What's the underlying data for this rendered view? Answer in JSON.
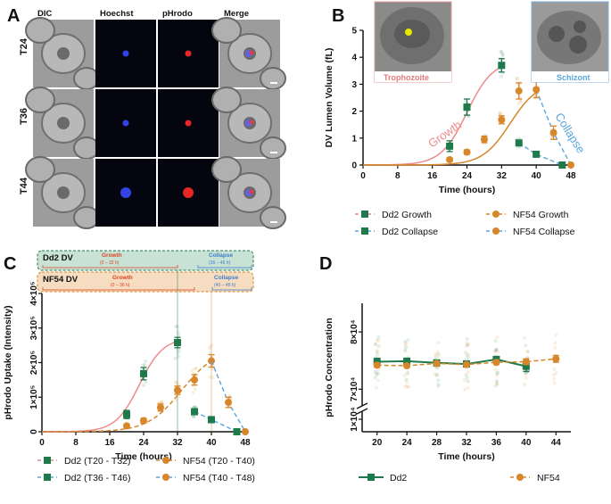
{
  "panel_labels": [
    "A",
    "B",
    "C",
    "D"
  ],
  "panelA": {
    "columns": [
      "DIC",
      "Hoechst",
      "pHrodo",
      "Merge"
    ],
    "rows": [
      "T24",
      "T36",
      "T44"
    ]
  },
  "insets": {
    "trophozoite": "Trophozoite",
    "schizont": "Schizont"
  },
  "annotations": {
    "growth": "Growth",
    "collapse": "Collapse"
  },
  "bars": {
    "dd2_title": "Dd2 DV",
    "nf54_title": "NF54 DV",
    "dd2_growth": "Growth",
    "dd2_growth_range": "(0 – 32 h)",
    "dd2_collapse": "Collapse",
    "dd2_collapse_range": "(36 – 46 h)",
    "nf54_growth": "Growth",
    "nf54_growth_range": "(0 – 36 h)",
    "nf54_collapse": "Collapse",
    "nf54_collapse_range": "(40 – 48 h)"
  },
  "colors": {
    "dd2": "#1e7a4a",
    "nf54": "#d8862a",
    "dd2_fit": "#f08a8a",
    "nf54_fit": "#d8862a",
    "collapse_line": "#5aa6dc"
  },
  "chart_data": [
    {
      "id": "B",
      "type": "line",
      "xlabel": "Time (hours)",
      "ylabel": "DV Lumen Volume (fL)",
      "xlim": [
        0,
        48
      ],
      "ylim": [
        0,
        5
      ],
      "xticks": [
        "0",
        "8",
        "16",
        "24",
        "32",
        "40",
        "48"
      ],
      "yticks": [
        "0",
        "1",
        "2",
        "3",
        "4",
        "5"
      ],
      "series": [
        {
          "name": "Dd2 Growth",
          "x": [
            20,
            24,
            32
          ],
          "y": [
            0.7,
            2.15,
            3.7
          ],
          "err": [
            0.2,
            0.3,
            0.25
          ]
        },
        {
          "name": "Dd2 Collapse",
          "x": [
            36,
            40,
            46
          ],
          "y": [
            0.82,
            0.4,
            0.0
          ],
          "err": [
            0.1,
            0.08,
            0.03
          ]
        },
        {
          "name": "NF54 Growth",
          "x": [
            20,
            24,
            28,
            32,
            36
          ],
          "y": [
            0.2,
            0.48,
            0.95,
            1.68,
            2.75
          ],
          "err": [
            0.06,
            0.08,
            0.12,
            0.15,
            0.3
          ]
        },
        {
          "name": "NF54 Collapse",
          "x": [
            40,
            44,
            48
          ],
          "y": [
            2.8,
            1.2,
            0.0
          ],
          "err": [
            0.3,
            0.25,
            0.05
          ]
        }
      ],
      "legend": [
        "Dd2 Growth",
        "NF54 Growth",
        "Dd2 Collapse",
        "NF54 Collapse"
      ]
    },
    {
      "id": "C",
      "type": "line",
      "xlabel": "Time (hours)",
      "ylabel": "pHrodo Uptake (Intensity)",
      "xlim": [
        0,
        48
      ],
      "ylim": [
        0,
        400000
      ],
      "xticks": [
        "0",
        "8",
        "16",
        "24",
        "32",
        "40",
        "48"
      ],
      "yticks": [
        "0",
        "1×10⁵",
        "2×10⁵",
        "3×10⁵",
        "4×10⁵"
      ],
      "series": [
        {
          "name": "Dd2 (T20 - T32)",
          "x": [
            20,
            24,
            32
          ],
          "y": [
            50000,
            168000,
            258000
          ],
          "err": [
            12000,
            18000,
            15000
          ]
        },
        {
          "name": "Dd2 (T36 - T46)",
          "x": [
            36,
            40,
            46
          ],
          "y": [
            58000,
            35000,
            0
          ],
          "err": [
            8000,
            6000,
            2000
          ]
        },
        {
          "name": "NF54 (T20 - T40)",
          "x": [
            20,
            24,
            28,
            32,
            36,
            40
          ],
          "y": [
            17000,
            32000,
            70000,
            120000,
            150000,
            205000
          ],
          "err": [
            5000,
            7000,
            10000,
            12000,
            15000,
            18000
          ]
        },
        {
          "name": "NF54 (T40 - T48)",
          "x": [
            44,
            48
          ],
          "y": [
            85000,
            0
          ],
          "err": [
            15000,
            2000
          ]
        }
      ],
      "legend": [
        "Dd2 (T20 - T32)",
        "NF54 (T20 - T40)",
        "Dd2 (T36 - T46)",
        "NF54 (T40 - T48)"
      ]
    },
    {
      "id": "D",
      "type": "line",
      "xlabel": "Time (hours)",
      "ylabel": "pHrodo Concentration",
      "xlim": [
        18,
        46
      ],
      "ylim": [
        60000,
        85000
      ],
      "y_axis_break": true,
      "xticks": [
        "20",
        "24",
        "28",
        "32",
        "36",
        "40",
        "44"
      ],
      "yticks": [
        "1×10⁴",
        "7×10⁴",
        "8×10⁴"
      ],
      "series": [
        {
          "name": "Dd2",
          "x": [
            20,
            24,
            28,
            32,
            36,
            40
          ],
          "y": [
            74800,
            74900,
            74600,
            74400,
            75200,
            74000
          ],
          "err": [
            600,
            500,
            400,
            300,
            500,
            900
          ]
        },
        {
          "name": "NF54",
          "x": [
            20,
            24,
            28,
            32,
            36,
            40,
            44
          ],
          "y": [
            74200,
            74100,
            74500,
            74300,
            74700,
            74800,
            75300
          ],
          "err": [
            400,
            300,
            300,
            300,
            400,
            500,
            600
          ]
        }
      ],
      "legend": [
        "Dd2",
        "NF54"
      ]
    }
  ]
}
